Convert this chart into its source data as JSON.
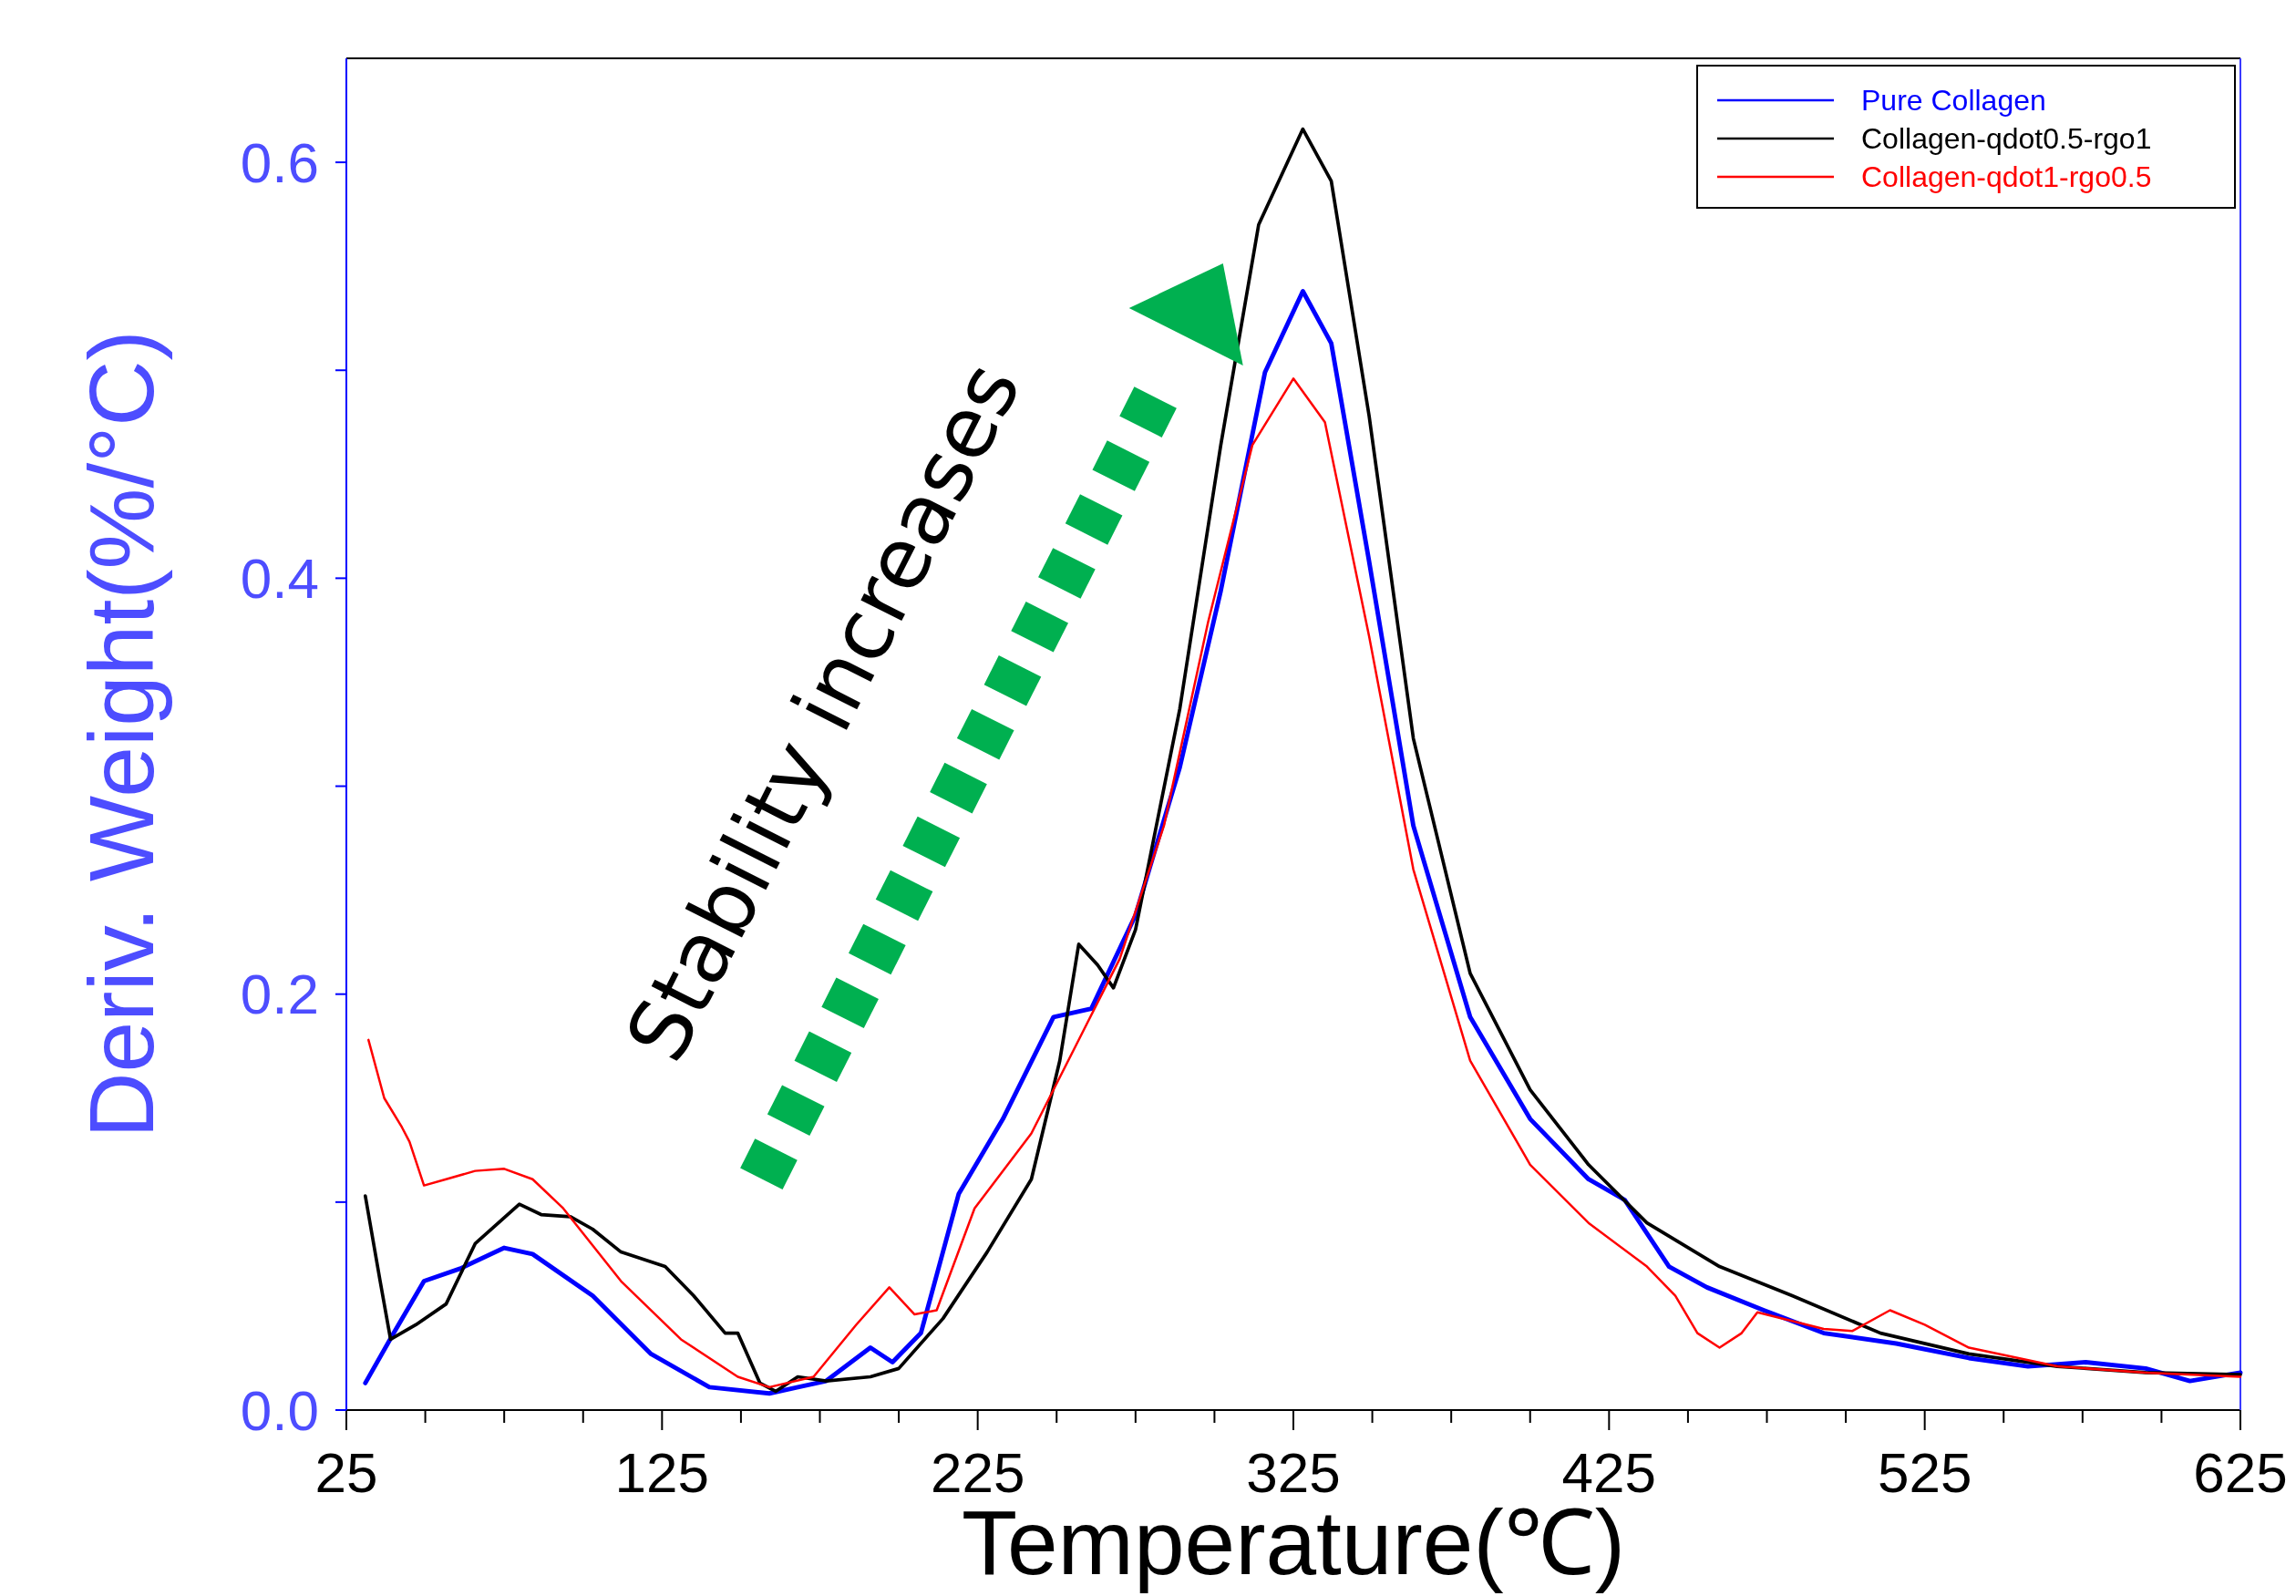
{
  "chart_data": {
    "type": "line",
    "xlabel": "Temperature(℃)",
    "ylabel": "Deriv. Weight(%/°C)",
    "annotations": [
      "Stability increases"
    ],
    "legend": "top right",
    "xlim": [
      25,
      625
    ],
    "ylim": [
      0,
      0.65
    ],
    "xticks": [
      25,
      {
        "value": 50,
        "label": null
      },
      {
        "value": 75,
        "label": null
      },
      {
        "value": 100,
        "label": null
      },
      125,
      {
        "value": 150,
        "label": null
      },
      {
        "value": 175,
        "label": null
      },
      {
        "value": 200,
        "label": null
      },
      225,
      {
        "value": 250,
        "label": null
      },
      {
        "value": 275,
        "label": null
      },
      {
        "value": 300,
        "label": null
      },
      325,
      {
        "value": 350,
        "label": null
      },
      {
        "value": 375,
        "label": null
      },
      {
        "value": 400,
        "label": null
      },
      425,
      {
        "value": 450,
        "label": null
      },
      {
        "value": 475,
        "label": null
      },
      {
        "value": 500,
        "label": null
      },
      525,
      {
        "value": 550,
        "label": null
      },
      {
        "value": 575,
        "label": null
      },
      {
        "value": 600,
        "label": null
      },
      625
    ],
    "yticks": [
      {
        "value": 0,
        "label": "0.0"
      },
      {
        "value": 0.1,
        "label": null
      },
      0.2,
      {
        "value": 0.3,
        "label": null
      },
      0.4,
      {
        "value": 0.5,
        "label": null
      },
      0.6
    ],
    "series": [
      {
        "name": "Pure Collagen",
        "color": "#0000ff",
        "x": [
          31,
          40,
          49.6,
          61,
          75,
          84,
          103,
          121.5,
          140,
          159,
          177,
          191,
          198,
          207,
          219,
          233,
          249,
          261,
          275,
          289,
          302,
          316,
          328,
          337,
          349,
          363,
          381,
          400,
          418.5,
          430,
          444,
          456,
          474,
          493,
          516,
          539,
          557.7,
          576,
          595,
          609,
          625
        ],
        "values": [
          0.013,
          0.037,
          0.062,
          0.068,
          0.078,
          0.075,
          0.055,
          0.027,
          0.011,
          0.008,
          0.014,
          0.03,
          0.023,
          0.037,
          0.104,
          0.14,
          0.189,
          0.193,
          0.238,
          0.309,
          0.394,
          0.499,
          0.538,
          0.513,
          0.408,
          0.281,
          0.189,
          0.14,
          0.111,
          0.101,
          0.069,
          0.059,
          0.048,
          0.037,
          0.032,
          0.025,
          0.021,
          0.023,
          0.02,
          0.014,
          0.018
        ]
      },
      {
        "name": "Collagen-qdot0.5-rgo1",
        "color": "#000000",
        "x": [
          31,
          35.7,
          39,
          47,
          56.6,
          65.8,
          79.8,
          86.7,
          96,
          103,
          112,
          126,
          135,
          145,
          149,
          156,
          161,
          168,
          177,
          191,
          200,
          214,
          228,
          242,
          251,
          257,
          263,
          268,
          275,
          289,
          302,
          314,
          328,
          337,
          349,
          363,
          381,
          400,
          418.5,
          437,
          460,
          483,
          511,
          539,
          567,
          595,
          625
        ],
        "values": [
          0.103,
          0.062,
          0.034,
          0.041,
          0.051,
          0.08,
          0.099,
          0.094,
          0.093,
          0.087,
          0.076,
          0.069,
          0.055,
          0.037,
          0.037,
          0.013,
          0.009,
          0.016,
          0.014,
          0.016,
          0.02,
          0.044,
          0.076,
          0.111,
          0.168,
          0.224,
          0.214,
          0.203,
          0.231,
          0.337,
          0.464,
          0.57,
          0.616,
          0.591,
          0.478,
          0.323,
          0.21,
          0.154,
          0.118,
          0.09,
          0.069,
          0.055,
          0.037,
          0.027,
          0.021,
          0.018,
          0.017
        ]
      },
      {
        "name": "Collagen-qdot1-rgo0.5",
        "color": "#ff0000",
        "x": [
          32,
          37,
          42.6,
          45,
          49.6,
          56.6,
          65.8,
          75,
          84,
          93.7,
          112,
          131,
          149,
          159,
          173,
          186.5,
          197,
          205,
          212,
          224,
          242,
          256,
          270,
          284,
          298,
          312,
          325,
          335,
          349,
          363,
          381,
          400,
          418.5,
          437,
          446,
          453,
          460,
          467,
          472,
          493,
          502,
          514,
          525,
          539,
          567,
          595,
          625
        ],
        "values": [
          0.178,
          0.15,
          0.136,
          0.129,
          0.108,
          0.111,
          0.115,
          0.116,
          0.111,
          0.097,
          0.062,
          0.034,
          0.016,
          0.011,
          0.016,
          0.041,
          0.059,
          0.046,
          0.048,
          0.097,
          0.133,
          0.175,
          0.217,
          0.281,
          0.379,
          0.464,
          0.496,
          0.475,
          0.372,
          0.26,
          0.168,
          0.118,
          0.09,
          0.069,
          0.055,
          0.037,
          0.03,
          0.037,
          0.047,
          0.039,
          0.038,
          0.048,
          0.041,
          0.03,
          0.021,
          0.018,
          0.016
        ]
      }
    ]
  }
}
